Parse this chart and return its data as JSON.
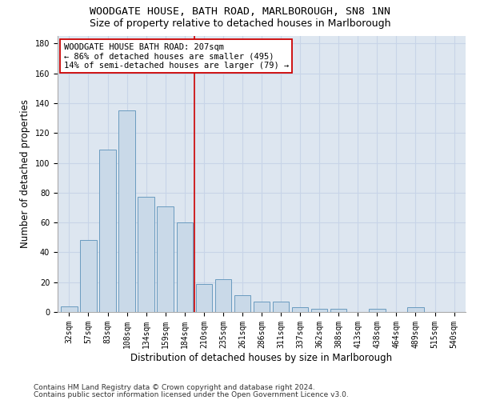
{
  "title": "WOODGATE HOUSE, BATH ROAD, MARLBOROUGH, SN8 1NN",
  "subtitle": "Size of property relative to detached houses in Marlborough",
  "xlabel": "Distribution of detached houses by size in Marlborough",
  "ylabel": "Number of detached properties",
  "bar_labels": [
    "32sqm",
    "57sqm",
    "83sqm",
    "108sqm",
    "134sqm",
    "159sqm",
    "184sqm",
    "210sqm",
    "235sqm",
    "261sqm",
    "286sqm",
    "311sqm",
    "337sqm",
    "362sqm",
    "388sqm",
    "413sqm",
    "438sqm",
    "464sqm",
    "489sqm",
    "515sqm",
    "540sqm"
  ],
  "bar_values": [
    4,
    48,
    109,
    135,
    77,
    71,
    60,
    19,
    22,
    11,
    7,
    7,
    3,
    2,
    2,
    0,
    2,
    0,
    3,
    0,
    0
  ],
  "bar_color": "#c9d9e8",
  "bar_edge_color": "#6a9bbf",
  "bar_edge_width": 0.7,
  "vline_x": 6.5,
  "vline_color": "#cc0000",
  "vline_lw": 1.2,
  "annotation_text": "WOODGATE HOUSE BATH ROAD: 207sqm\n← 86% of detached houses are smaller (495)\n14% of semi-detached houses are larger (79) →",
  "annotation_box_color": "#ffffff",
  "annotation_box_edge": "#cc0000",
  "ylim": [
    0,
    185
  ],
  "yticks": [
    0,
    20,
    40,
    60,
    80,
    100,
    120,
    140,
    160,
    180
  ],
  "grid_color": "#c8d4e8",
  "bg_color": "#dde6f0",
  "footnote1": "Contains HM Land Registry data © Crown copyright and database right 2024.",
  "footnote2": "Contains public sector information licensed under the Open Government Licence v3.0.",
  "title_fontsize": 9.5,
  "subtitle_fontsize": 9,
  "xlabel_fontsize": 8.5,
  "ylabel_fontsize": 8.5,
  "tick_fontsize": 7,
  "annotation_fontsize": 7.5,
  "footnote_fontsize": 6.5
}
